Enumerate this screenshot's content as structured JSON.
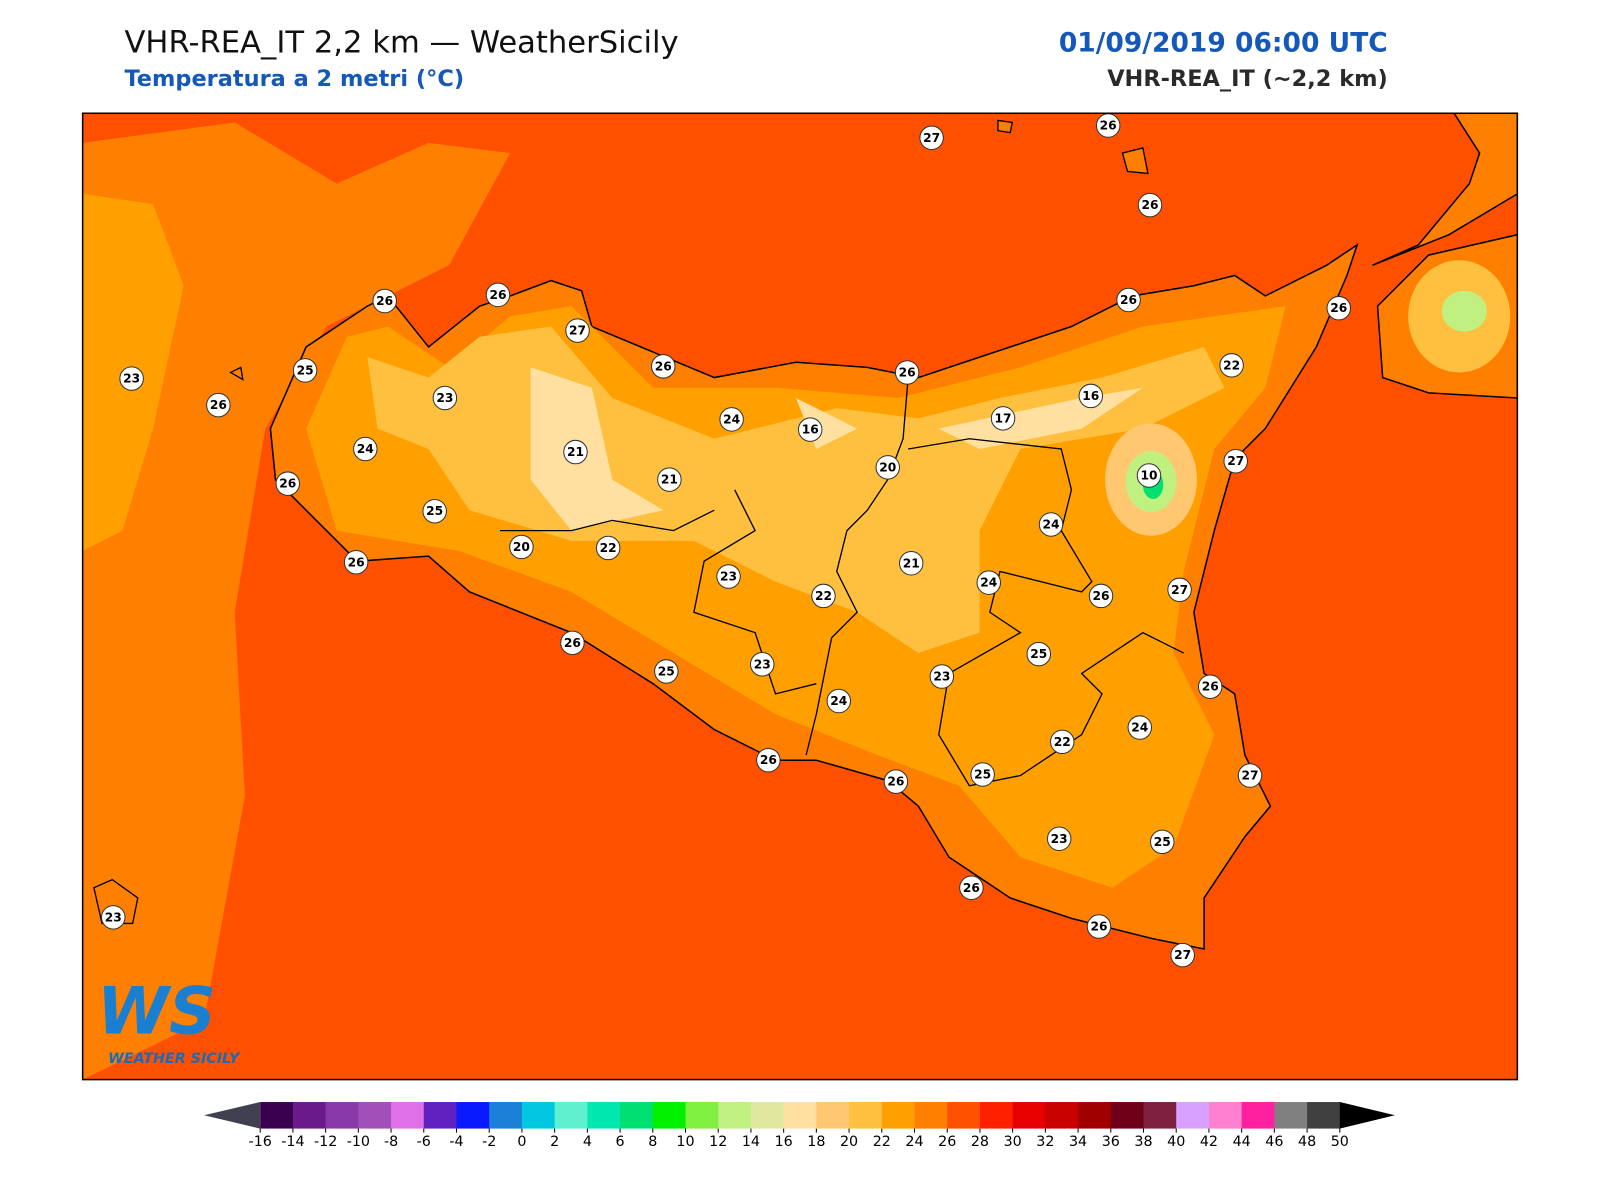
{
  "header": {
    "title": "VHR-REA_IT 2,2 km — WeatherSicily",
    "subtitle": "Temperatura a 2 metri (°C)",
    "datetime": "01/09/2019 06:00 UTC",
    "model": "VHR-REA_IT (~2,2 km)"
  },
  "map": {
    "stations": [
      27,
      26,
      26,
      26,
      26,
      27,
      26,
      23,
      25,
      26,
      23,
      24,
      21,
      24,
      16,
      26,
      26,
      26,
      22,
      16,
      17,
      20,
      21,
      10,
      27,
      26,
      25,
      20,
      22,
      26,
      23,
      21,
      22,
      24,
      24,
      26,
      27,
      26,
      25,
      23,
      25,
      23,
      24,
      26,
      24,
      22,
      26,
      25,
      26,
      27,
      23,
      25,
      23,
      26,
      26,
      27
    ],
    "logo": {
      "mark": "WS",
      "name": "WEATHER SICILY"
    }
  },
  "colorbar": {
    "ticks": [
      -16,
      -14,
      -12,
      -10,
      -8,
      -6,
      -4,
      -2,
      0,
      2,
      4,
      6,
      8,
      10,
      12,
      14,
      16,
      18,
      20,
      22,
      24,
      26,
      28,
      30,
      32,
      34,
      36,
      38,
      40,
      42,
      44,
      46,
      48,
      50
    ],
    "colors": [
      "#3a0050",
      "#6a1a8a",
      "#8a3aa8",
      "#a050b8",
      "#e070e8",
      "#6020c0",
      "#0a1aff",
      "#1a80d8",
      "#00c8e0",
      "#60f0d0",
      "#00e8b0",
      "#00e070",
      "#00f000",
      "#80f040",
      "#c0f080",
      "#e0e8a0",
      "#ffe0a0",
      "#ffc870",
      "#ffc040",
      "#ffa000",
      "#ff8000",
      "#ff5000",
      "#ff2000",
      "#e80000",
      "#c80000",
      "#a00000",
      "#700018",
      "#802040",
      "#d8a0ff",
      "#ff80d0",
      "#ff20a0",
      "#808080",
      "#404040"
    ],
    "under": "#404050",
    "over": "#000000"
  }
}
